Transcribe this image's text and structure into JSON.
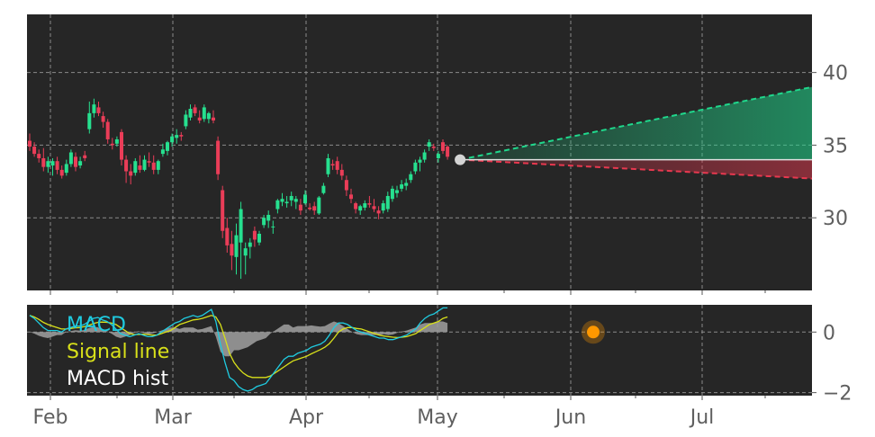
{
  "colors": {
    "background": "#262626",
    "grid": "#8a8a8a",
    "up": "#26e08f",
    "down": "#ea3d58",
    "macd": "#1fcbe0",
    "signal": "#d8e01a",
    "hist": "#9a9a9a",
    "marker": "#ff9800",
    "projection_up": "#1fd88c",
    "projection_down": "#e8384f",
    "current": "#d4d4d4"
  },
  "chart_data": [
    {
      "type": "candlestick",
      "panel": "price",
      "x_ticks": [
        "Feb",
        "Mar",
        "Apr",
        "May",
        "Jun",
        "Jul"
      ],
      "y_ticks": [
        30,
        35,
        40
      ],
      "ylim": [
        25,
        44
      ],
      "grid": true,
      "candles": [
        {
          "o": 35.3,
          "h": 35.8,
          "l": 34.6,
          "c": 34.9
        },
        {
          "o": 34.9,
          "h": 35.2,
          "l": 34.2,
          "c": 34.4
        },
        {
          "o": 34.4,
          "h": 34.7,
          "l": 33.8,
          "c": 34.1
        },
        {
          "o": 34.1,
          "h": 34.8,
          "l": 33.2,
          "c": 33.5
        },
        {
          "o": 33.5,
          "h": 34.2,
          "l": 33.1,
          "c": 33.9
        },
        {
          "o": 33.6,
          "h": 34.1,
          "l": 32.9,
          "c": 33.9
        },
        {
          "o": 33.9,
          "h": 34.2,
          "l": 33.0,
          "c": 33.3
        },
        {
          "o": 33.3,
          "h": 33.6,
          "l": 32.7,
          "c": 32.9
        },
        {
          "o": 33.1,
          "h": 34.0,
          "l": 32.9,
          "c": 33.7
        },
        {
          "o": 33.7,
          "h": 34.7,
          "l": 33.5,
          "c": 34.5
        },
        {
          "o": 34.2,
          "h": 34.5,
          "l": 33.2,
          "c": 33.5
        },
        {
          "o": 33.6,
          "h": 34.2,
          "l": 33.4,
          "c": 33.9
        },
        {
          "o": 34.3,
          "h": 34.6,
          "l": 33.9,
          "c": 34.1
        },
        {
          "o": 36.1,
          "h": 38.0,
          "l": 35.8,
          "c": 37.2
        },
        {
          "o": 37.2,
          "h": 38.2,
          "l": 36.9,
          "c": 37.8
        },
        {
          "o": 37.6,
          "h": 38.0,
          "l": 37.0,
          "c": 37.2
        },
        {
          "o": 37.0,
          "h": 37.3,
          "l": 36.2,
          "c": 36.6
        },
        {
          "o": 36.6,
          "h": 36.8,
          "l": 35.1,
          "c": 35.4
        },
        {
          "o": 35.1,
          "h": 35.5,
          "l": 34.7,
          "c": 35.0
        },
        {
          "o": 35.1,
          "h": 35.6,
          "l": 34.9,
          "c": 35.4
        },
        {
          "o": 35.9,
          "h": 36.1,
          "l": 33.6,
          "c": 34.0
        },
        {
          "o": 34.0,
          "h": 34.3,
          "l": 32.4,
          "c": 33.2
        },
        {
          "o": 33.2,
          "h": 33.7,
          "l": 32.3,
          "c": 32.9
        },
        {
          "o": 33.1,
          "h": 34.1,
          "l": 32.9,
          "c": 33.9
        },
        {
          "o": 33.6,
          "h": 34.3,
          "l": 33.1,
          "c": 33.3
        },
        {
          "o": 33.3,
          "h": 34.3,
          "l": 33.2,
          "c": 34.0
        },
        {
          "o": 33.9,
          "h": 34.5,
          "l": 33.5,
          "c": 33.8
        },
        {
          "o": 33.8,
          "h": 34.3,
          "l": 33.0,
          "c": 33.3
        },
        {
          "o": 33.3,
          "h": 34.0,
          "l": 33.0,
          "c": 33.9
        },
        {
          "o": 34.4,
          "h": 35.1,
          "l": 34.2,
          "c": 34.7
        },
        {
          "o": 34.6,
          "h": 35.3,
          "l": 34.3,
          "c": 35.2
        },
        {
          "o": 35.2,
          "h": 35.8,
          "l": 34.9,
          "c": 35.6
        },
        {
          "o": 35.5,
          "h": 36.1,
          "l": 35.1,
          "c": 35.7
        },
        {
          "o": 35.7,
          "h": 35.9,
          "l": 35.3,
          "c": 35.6
        },
        {
          "o": 36.3,
          "h": 37.4,
          "l": 36.1,
          "c": 37.1
        },
        {
          "o": 36.9,
          "h": 37.8,
          "l": 36.7,
          "c": 37.5
        },
        {
          "o": 37.6,
          "h": 37.8,
          "l": 37.0,
          "c": 37.2
        },
        {
          "o": 36.9,
          "h": 37.4,
          "l": 36.5,
          "c": 36.7
        },
        {
          "o": 36.8,
          "h": 37.8,
          "l": 36.6,
          "c": 37.6
        },
        {
          "o": 36.8,
          "h": 37.3,
          "l": 36.5,
          "c": 37.2
        },
        {
          "o": 36.9,
          "h": 37.4,
          "l": 36.5,
          "c": 36.7
        },
        {
          "o": 35.3,
          "h": 35.6,
          "l": 32.6,
          "c": 33.0
        },
        {
          "o": 31.9,
          "h": 32.2,
          "l": 28.6,
          "c": 29.1
        },
        {
          "o": 29.3,
          "h": 30.0,
          "l": 27.6,
          "c": 28.1
        },
        {
          "o": 28.2,
          "h": 29.1,
          "l": 26.4,
          "c": 27.4
        },
        {
          "o": 27.3,
          "h": 29.6,
          "l": 26.1,
          "c": 28.8
        },
        {
          "o": 28.3,
          "h": 31.1,
          "l": 25.8,
          "c": 30.6
        },
        {
          "o": 27.4,
          "h": 28.3,
          "l": 26.1,
          "c": 27.9
        },
        {
          "o": 28.0,
          "h": 28.6,
          "l": 27.2,
          "c": 28.3
        },
        {
          "o": 29.1,
          "h": 29.4,
          "l": 28.0,
          "c": 28.5
        },
        {
          "o": 28.3,
          "h": 29.1,
          "l": 28.1,
          "c": 28.9
        },
        {
          "o": 29.5,
          "h": 30.2,
          "l": 29.3,
          "c": 30.0
        },
        {
          "o": 29.8,
          "h": 30.5,
          "l": 29.3,
          "c": 30.2
        },
        {
          "o": 29.4,
          "h": 29.8,
          "l": 28.9,
          "c": 29.4
        },
        {
          "o": 30.6,
          "h": 31.3,
          "l": 30.3,
          "c": 31.2
        },
        {
          "o": 31.1,
          "h": 31.7,
          "l": 30.8,
          "c": 31.3
        },
        {
          "o": 31.0,
          "h": 31.5,
          "l": 30.7,
          "c": 31.1
        },
        {
          "o": 31.2,
          "h": 31.8,
          "l": 30.8,
          "c": 31.5
        },
        {
          "o": 31.1,
          "h": 31.5,
          "l": 30.6,
          "c": 31.3
        },
        {
          "o": 30.9,
          "h": 31.3,
          "l": 30.2,
          "c": 30.5
        },
        {
          "o": 31.0,
          "h": 31.9,
          "l": 30.9,
          "c": 31.6
        },
        {
          "o": 30.7,
          "h": 31.0,
          "l": 30.5,
          "c": 30.6
        },
        {
          "o": 30.8,
          "h": 31.1,
          "l": 30.2,
          "c": 30.5
        },
        {
          "o": 30.3,
          "h": 31.5,
          "l": 30.2,
          "c": 31.4
        },
        {
          "o": 31.7,
          "h": 32.4,
          "l": 31.6,
          "c": 32.2
        },
        {
          "o": 33.0,
          "h": 34.4,
          "l": 32.8,
          "c": 34.1
        },
        {
          "o": 33.7,
          "h": 34.0,
          "l": 33.3,
          "c": 33.6
        },
        {
          "o": 33.9,
          "h": 34.2,
          "l": 33.0,
          "c": 33.3
        },
        {
          "o": 33.3,
          "h": 33.7,
          "l": 32.6,
          "c": 32.9
        },
        {
          "o": 32.6,
          "h": 32.9,
          "l": 31.5,
          "c": 31.9
        },
        {
          "o": 31.6,
          "h": 32.0,
          "l": 31.0,
          "c": 31.3
        },
        {
          "o": 31.0,
          "h": 31.1,
          "l": 30.3,
          "c": 30.6
        },
        {
          "o": 30.5,
          "h": 30.9,
          "l": 30.2,
          "c": 30.8
        },
        {
          "o": 30.7,
          "h": 31.2,
          "l": 30.5,
          "c": 31.0
        },
        {
          "o": 31.0,
          "h": 31.5,
          "l": 30.7,
          "c": 30.9
        },
        {
          "o": 30.8,
          "h": 31.3,
          "l": 30.4,
          "c": 30.6
        },
        {
          "o": 30.5,
          "h": 30.8,
          "l": 29.9,
          "c": 30.3
        },
        {
          "o": 30.5,
          "h": 31.2,
          "l": 30.3,
          "c": 31.0
        },
        {
          "o": 30.6,
          "h": 31.8,
          "l": 30.4,
          "c": 31.5
        },
        {
          "o": 31.3,
          "h": 32.2,
          "l": 31.1,
          "c": 32.0
        },
        {
          "o": 31.7,
          "h": 32.2,
          "l": 31.4,
          "c": 31.9
        },
        {
          "o": 32.0,
          "h": 32.6,
          "l": 31.8,
          "c": 32.3
        },
        {
          "o": 32.2,
          "h": 32.7,
          "l": 31.9,
          "c": 32.4
        },
        {
          "o": 32.6,
          "h": 33.2,
          "l": 32.4,
          "c": 33.0
        },
        {
          "o": 33.2,
          "h": 34.0,
          "l": 33.0,
          "c": 33.8
        },
        {
          "o": 33.8,
          "h": 34.2,
          "l": 33.2,
          "c": 34.0
        },
        {
          "o": 34.0,
          "h": 34.7,
          "l": 33.8,
          "c": 34.5
        },
        {
          "o": 34.9,
          "h": 35.4,
          "l": 34.6,
          "c": 35.2
        },
        {
          "o": 34.9,
          "h": 35.1,
          "l": 34.6,
          "c": 34.8
        },
        {
          "o": 34.1,
          "h": 34.6,
          "l": 33.8,
          "c": 34.4
        },
        {
          "o": 35.2,
          "h": 35.4,
          "l": 34.4,
          "c": 34.6
        },
        {
          "o": 34.9,
          "h": 35.0,
          "l": 34.0,
          "c": 34.2
        }
      ],
      "current_price": 34.0,
      "projection": {
        "up_end": 39.0,
        "down_end": 32.7
      }
    },
    {
      "type": "line",
      "panel": "macd",
      "y_ticks": [
        0,
        -2
      ],
      "ylim": [
        -2.1,
        0.9
      ],
      "grid": true,
      "legend": [
        "MACD",
        "Signal line",
        "MACD hist"
      ],
      "legend_position": "top-left",
      "series": [
        {
          "name": "MACD",
          "values": [
            0.55,
            0.45,
            0.3,
            0.15,
            0.05,
            0.05,
            0.05,
            0.0,
            0.1,
            0.15,
            0.2,
            0.2,
            0.25,
            0.35,
            0.45,
            0.48,
            0.4,
            0.35,
            0.25,
            0.1,
            -0.05,
            -0.1,
            -0.15,
            -0.1,
            -0.05,
            -0.1,
            -0.15,
            -0.15,
            -0.1,
            0.0,
            0.1,
            0.2,
            0.3,
            0.35,
            0.45,
            0.5,
            0.55,
            0.5,
            0.55,
            0.65,
            0.75,
            0.35,
            -0.4,
            -1.0,
            -1.5,
            -1.6,
            -1.8,
            -1.9,
            -1.95,
            -1.9,
            -1.8,
            -1.75,
            -1.7,
            -1.5,
            -1.3,
            -1.1,
            -0.9,
            -0.8,
            -0.8,
            -0.7,
            -0.65,
            -0.6,
            -0.5,
            -0.45,
            -0.4,
            -0.3,
            -0.1,
            0.15,
            0.3,
            0.3,
            0.25,
            0.15,
            0.05,
            0.0,
            -0.05,
            -0.1,
            -0.15,
            -0.2,
            -0.2,
            -0.25,
            -0.25,
            -0.2,
            -0.15,
            -0.1,
            0.0,
            0.1,
            0.3,
            0.45,
            0.55,
            0.6,
            0.7,
            0.8,
            0.8
          ]
        },
        {
          "name": "Signal line",
          "values": [
            0.55,
            0.5,
            0.42,
            0.32,
            0.25,
            0.2,
            0.15,
            0.1,
            0.1,
            0.12,
            0.14,
            0.15,
            0.18,
            0.22,
            0.28,
            0.32,
            0.33,
            0.32,
            0.3,
            0.25,
            0.15,
            0.05,
            -0.05,
            -0.08,
            -0.08,
            -0.07,
            -0.08,
            -0.1,
            -0.1,
            -0.05,
            0.0,
            0.05,
            0.15,
            0.25,
            0.3,
            0.35,
            0.4,
            0.42,
            0.45,
            0.5,
            0.55,
            0.5,
            0.25,
            -0.2,
            -0.7,
            -1.0,
            -1.2,
            -1.35,
            -1.45,
            -1.5,
            -1.5,
            -1.5,
            -1.5,
            -1.45,
            -1.35,
            -1.25,
            -1.15,
            -1.05,
            -0.95,
            -0.9,
            -0.85,
            -0.8,
            -0.72,
            -0.65,
            -0.58,
            -0.5,
            -0.38,
            -0.2,
            0.0,
            0.1,
            0.15,
            0.15,
            0.12,
            0.1,
            0.05,
            0.0,
            -0.05,
            -0.1,
            -0.13,
            -0.15,
            -0.17,
            -0.18,
            -0.17,
            -0.15,
            -0.1,
            -0.05,
            0.05,
            0.15,
            0.25,
            0.3,
            0.35,
            0.45,
            0.5
          ]
        }
      ],
      "marker_value": 0.0
    }
  ]
}
